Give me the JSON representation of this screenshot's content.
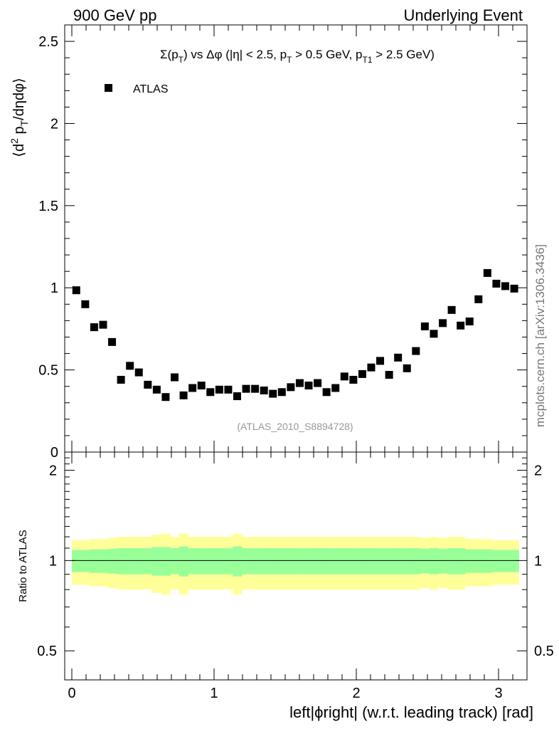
{
  "header": {
    "left_label": "900 GeV pp",
    "right_label": "Underlying Event"
  },
  "side_label": "mcplots.cern.ch [arXiv:1306.3436]",
  "colors": {
    "yellow_band": "#ffff99",
    "green_band": "#99ff99",
    "marker": "#000000"
  },
  "chart_data": [
    {
      "type": "scatter",
      "title": "Σ(pT) vs Δφ (|η| < 2.5, pT > 0.5 GeV, pT1 > 2.5 GeV)",
      "title_parts": {
        "lead": "Σ(p",
        "sub1": "T",
        "mid1": ") vs Δφ (|η| < 2.5, p",
        "sub2": "T",
        "mid2": " > 0.5 GeV, p",
        "sub3": "T1",
        "tail": " > 2.5 GeV)"
      },
      "ylabel": "⟨d² pT/dηdφ⟩",
      "ylabel_parts": {
        "a": "⟨d",
        "sup": "2",
        "b": " p",
        "sub": "T",
        "c": "/dηdφ⟩"
      },
      "xlabel": "",
      "xlim": [
        -0.05,
        3.2
      ],
      "ylim": [
        0,
        2.6
      ],
      "yticks": [
        0,
        0.5,
        1,
        1.5,
        2,
        2.5
      ],
      "ytick_labels": [
        "0",
        "0.5",
        "1",
        "1.5",
        "2",
        "2.5"
      ],
      "legend": {
        "label": "ATLAS",
        "position": "top-left"
      },
      "watermark": "(ATLAS_2010_S8894728)",
      "series": [
        {
          "name": "ATLAS",
          "x": [
            0.0314,
            0.0942,
            0.157,
            0.2199,
            0.2827,
            0.3456,
            0.4084,
            0.4712,
            0.5341,
            0.5969,
            0.6597,
            0.7226,
            0.7854,
            0.8482,
            0.9111,
            0.9739,
            1.0367,
            1.0996,
            1.1624,
            1.2252,
            1.2881,
            1.3509,
            1.4137,
            1.4766,
            1.5394,
            1.6022,
            1.6651,
            1.7279,
            1.7907,
            1.8536,
            1.9164,
            1.9792,
            2.0421,
            2.1049,
            2.1677,
            2.2306,
            2.2934,
            2.3562,
            2.4191,
            2.4819,
            2.5447,
            2.6076,
            2.6704,
            2.7332,
            2.7961,
            2.8589,
            2.9217,
            2.9846,
            3.0474,
            3.1102
          ],
          "y": [
            0.985,
            0.9,
            0.76,
            0.775,
            0.67,
            0.44,
            0.525,
            0.485,
            0.41,
            0.38,
            0.335,
            0.455,
            0.345,
            0.39,
            0.405,
            0.365,
            0.38,
            0.38,
            0.34,
            0.385,
            0.385,
            0.375,
            0.355,
            0.365,
            0.395,
            0.42,
            0.405,
            0.42,
            0.365,
            0.39,
            0.46,
            0.44,
            0.475,
            0.515,
            0.555,
            0.47,
            0.575,
            0.51,
            0.615,
            0.765,
            0.72,
            0.785,
            0.865,
            0.77,
            0.795,
            0.93,
            1.09,
            1.025,
            1.01,
            0.995
          ]
        }
      ]
    },
    {
      "type": "area",
      "title": "",
      "ylabel": "Ratio to ATLAS",
      "xlabel": "left|ϕright| (w.r.t. leading track) [rad]",
      "xlim": [
        -0.05,
        3.2
      ],
      "ylim": [
        0.4,
        2.3
      ],
      "xticks": [
        0,
        1,
        2,
        3
      ],
      "xtick_labels": [
        "0",
        "1",
        "2",
        "3"
      ],
      "yticks": [
        0.5,
        1,
        2
      ],
      "ytick_labels": [
        "0.5",
        "1",
        "2"
      ],
      "reference_line": 1.0,
      "bands": {
        "x_edges": [
          0.0,
          0.0628,
          0.1257,
          0.1885,
          0.2513,
          0.3142,
          0.377,
          0.4398,
          0.5027,
          0.5655,
          0.6283,
          0.6912,
          0.754,
          0.8168,
          0.8796,
          0.9425,
          1.0053,
          1.0681,
          1.131,
          1.1938,
          1.2566,
          1.3195,
          1.3823,
          1.4451,
          1.508,
          1.5708,
          1.6336,
          1.6965,
          1.7593,
          1.8221,
          1.885,
          1.9478,
          2.0106,
          2.0735,
          2.1363,
          2.1991,
          2.2619,
          2.3248,
          2.3876,
          2.4504,
          2.5133,
          2.5761,
          2.6389,
          2.7018,
          2.7646,
          2.8274,
          2.8903,
          2.9531,
          3.0159,
          3.0788,
          3.1416
        ],
        "green_half": [
          0.085,
          0.085,
          0.09,
          0.09,
          0.095,
          0.1,
          0.1,
          0.1,
          0.1,
          0.11,
          0.11,
          0.1,
          0.115,
          0.1,
          0.1,
          0.1,
          0.1,
          0.1,
          0.115,
          0.1,
          0.1,
          0.1,
          0.1,
          0.1,
          0.1,
          0.1,
          0.1,
          0.1,
          0.1,
          0.1,
          0.1,
          0.1,
          0.1,
          0.1,
          0.1,
          0.1,
          0.1,
          0.1,
          0.1,
          0.095,
          0.1,
          0.095,
          0.1,
          0.1,
          0.09,
          0.09,
          0.09,
          0.085,
          0.085,
          0.085
        ],
        "yellow_half": [
          0.17,
          0.17,
          0.18,
          0.18,
          0.19,
          0.2,
          0.2,
          0.2,
          0.2,
          0.22,
          0.23,
          0.2,
          0.23,
          0.2,
          0.2,
          0.2,
          0.2,
          0.2,
          0.23,
          0.2,
          0.2,
          0.2,
          0.2,
          0.2,
          0.2,
          0.2,
          0.2,
          0.2,
          0.2,
          0.2,
          0.2,
          0.2,
          0.2,
          0.2,
          0.2,
          0.2,
          0.2,
          0.2,
          0.2,
          0.19,
          0.2,
          0.19,
          0.2,
          0.2,
          0.18,
          0.18,
          0.18,
          0.17,
          0.17,
          0.17
        ]
      }
    }
  ]
}
